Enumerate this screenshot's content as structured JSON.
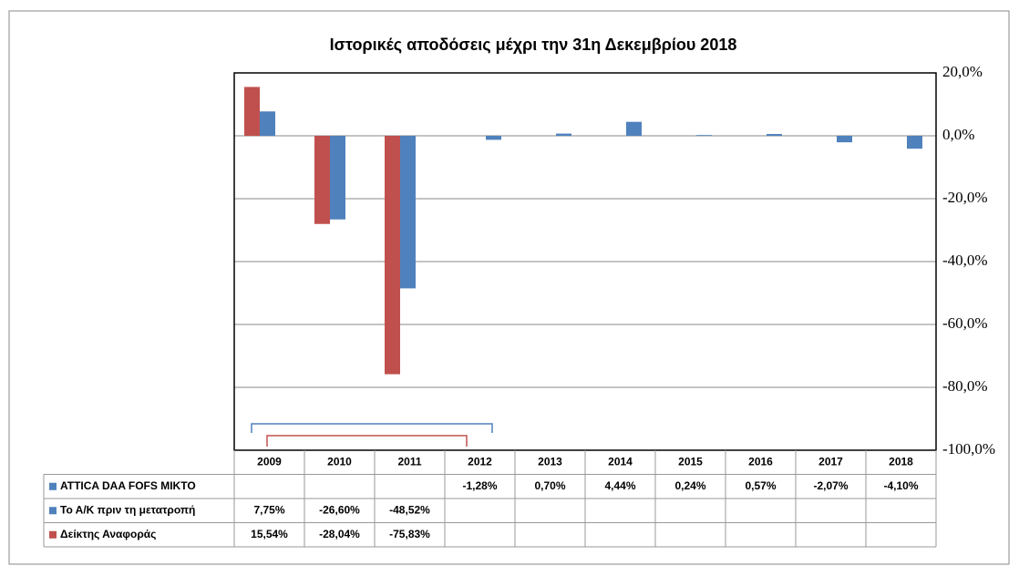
{
  "chart_data": {
    "type": "bar",
    "title": "Ιστορικές αποδόσεις μέχρι την 31η Δεκεμβρίου 2018",
    "categories": [
      "2009",
      "2010",
      "2011",
      "2012",
      "2013",
      "2014",
      "2015",
      "2016",
      "2017",
      "2018"
    ],
    "series": [
      {
        "name": "ATTICA DAA FOFS MIKTO",
        "color": "#4f81bd",
        "values": [
          null,
          null,
          null,
          -1.28,
          0.7,
          4.44,
          0.24,
          0.57,
          -2.07,
          -4.1
        ],
        "value_labels": [
          null,
          null,
          null,
          "-1,28%",
          "0,70%",
          "4,44%",
          "0,24%",
          "0,57%",
          "-2,07%",
          "-4,10%"
        ]
      },
      {
        "name": "Το Α/Κ πριν τη μετατροπή",
        "color": "#4f81bd",
        "values": [
          7.75,
          -26.6,
          -48.52,
          null,
          null,
          null,
          null,
          null,
          null,
          null
        ],
        "value_labels": [
          "7,75%",
          "-26,60%",
          "-48,52%",
          null,
          null,
          null,
          null,
          null,
          null,
          null
        ]
      },
      {
        "name": "Δείκτης Αναφοράς",
        "color": "#c0504d",
        "values": [
          15.54,
          -28.04,
          -75.83,
          null,
          null,
          null,
          null,
          null,
          null,
          null
        ],
        "value_labels": [
          "15,54%",
          "-28,04%",
          "-75,83%",
          null,
          null,
          null,
          null,
          null,
          null,
          null
        ]
      }
    ],
    "ylim": [
      -100,
      20
    ],
    "yticks": [
      {
        "value": 20,
        "label": "20,0%"
      },
      {
        "value": 0,
        "label": "0,0%"
      },
      {
        "value": -20,
        "label": "-20,0%"
      },
      {
        "value": -40,
        "label": "-40,0%"
      },
      {
        "value": -60,
        "label": "-60,0%"
      },
      {
        "value": -80,
        "label": "-80,0%"
      },
      {
        "value": -100,
        "label": "-100,0%"
      }
    ],
    "grid": true
  }
}
